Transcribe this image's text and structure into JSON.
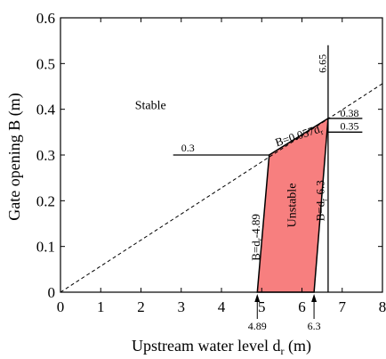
{
  "chart_data": {
    "type": "area",
    "title": "",
    "xlabel_main": "Upstream water level d",
    "xlabel_sub": "r",
    "xlabel_tail": " (m)",
    "ylabel": "Gate opening B (m)",
    "xlim": [
      0,
      8
    ],
    "ylim": [
      0,
      0.6
    ],
    "x_ticks": [
      0,
      1,
      2,
      3,
      4,
      5,
      6,
      7,
      8
    ],
    "x_tick_labels": [
      "0",
      "1",
      "2",
      "3",
      "4",
      "5",
      "6",
      "7",
      "8"
    ],
    "y_ticks": [
      0,
      0.1,
      0.2,
      0.3,
      0.4,
      0.5,
      0.6
    ],
    "y_tick_labels": [
      "0",
      "0.1",
      "0.2",
      "0.3",
      "0.4",
      "0.5",
      "0.6"
    ],
    "grid": false,
    "dashed_line": {
      "equation": "B = 0.057 d_r",
      "x": [
        0,
        8
      ],
      "y": [
        0,
        0.456
      ]
    },
    "unstable_region": {
      "polygon_x": [
        4.89,
        6.3,
        6.65,
        5.186
      ],
      "polygon_y": [
        0,
        0,
        0.38,
        0.3
      ],
      "fill_color": "#f77f7f"
    },
    "vertical_line": {
      "x": 6.65,
      "y": [
        0,
        0.54
      ]
    },
    "horizontal_lines": [
      {
        "y": 0.3,
        "x": [
          2.8,
          5.186
        ]
      },
      {
        "y": 0.38,
        "x": [
          6.65,
          7.5
        ]
      },
      {
        "y": 0.35,
        "x": [
          6.65,
          7.5
        ]
      }
    ],
    "annotations": {
      "stable": "Stable",
      "unstable": "Unstable",
      "eq_dashed_main": "B=0.057d",
      "eq_dashed_sub": "r",
      "eq_left_main": "B=d",
      "eq_left_sub": "r",
      "eq_left_tail": "-4.89",
      "eq_right_main": "B=d",
      "eq_right_sub": "r",
      "eq_right_tail": "-6.3",
      "val_665": "6.65",
      "val_03": "0.3",
      "val_038": "0.38",
      "val_035": "0.35",
      "val_489": "4.89",
      "val_63": "6.3"
    }
  }
}
